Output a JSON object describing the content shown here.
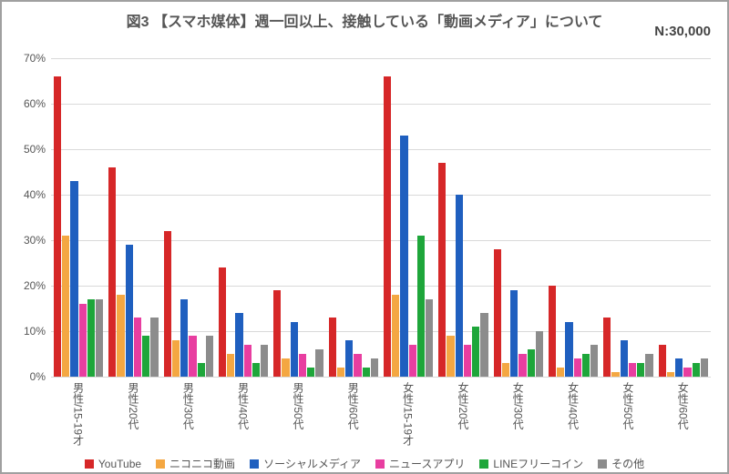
{
  "title": "図3 【スマホ媒体】週一回以上、接触している「動画メディア」について",
  "sample_label": "N:30,000",
  "chart": {
    "type": "bar",
    "ymax": 70,
    "ytick_step": 10,
    "background_color": "#ffffff",
    "grid_color": "#d9d9d9",
    "axis_color": "#b0b0b0",
    "title_color": "#555555",
    "title_fontsize": 16,
    "label_fontsize": 12,
    "categories": [
      "男性/15-19才",
      "男性/20代",
      "男性/30代",
      "男性/40代",
      "男性/50代",
      "男性/60代",
      "女性/15-19才",
      "女性/20代",
      "女性/30代",
      "女性/40代",
      "女性/50代",
      "女性/60代"
    ],
    "series": [
      {
        "name": "YouTube",
        "color": "#d62728",
        "values": [
          66,
          46,
          32,
          24,
          19,
          13,
          66,
          47,
          28,
          20,
          13,
          7
        ]
      },
      {
        "name": "ニコニコ動画",
        "color": "#f4a742",
        "values": [
          31,
          18,
          8,
          5,
          4,
          2,
          18,
          9,
          3,
          2,
          1,
          1
        ]
      },
      {
        "name": "ソーシャルメディア",
        "color": "#1f5fbf",
        "values": [
          43,
          29,
          17,
          14,
          12,
          8,
          53,
          40,
          19,
          12,
          8,
          4
        ]
      },
      {
        "name": "ニュースアプリ",
        "color": "#e83ea0",
        "values": [
          16,
          13,
          9,
          7,
          5,
          5,
          7,
          7,
          5,
          4,
          3,
          2
        ]
      },
      {
        "name": "LINEフリーコイン",
        "color": "#1ea63a",
        "values": [
          17,
          9,
          3,
          3,
          2,
          2,
          31,
          11,
          6,
          5,
          3,
          3
        ]
      },
      {
        "name": "その他",
        "color": "#8c8c8c",
        "values": [
          17,
          13,
          9,
          7,
          6,
          4,
          17,
          14,
          10,
          7,
          5,
          4
        ]
      }
    ]
  }
}
